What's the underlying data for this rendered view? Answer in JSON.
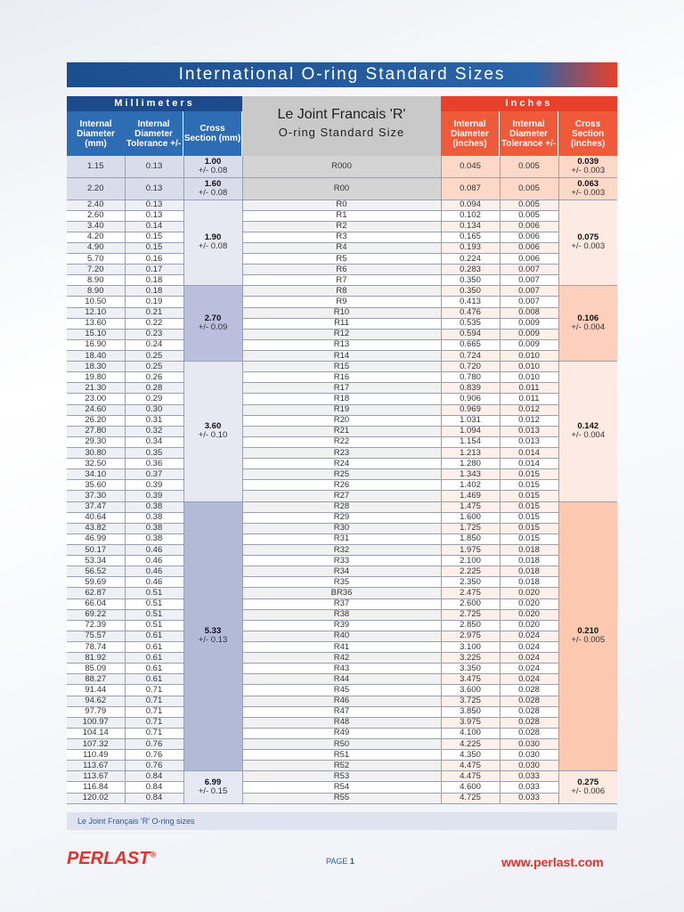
{
  "header": {
    "title": "International O-ring Standard Sizes",
    "millimeters": "Millimeters",
    "inches": "Inches",
    "middle_title": "Le Joint Francais 'R'",
    "middle_subtitle": "O-ring Standard Size",
    "columns": [
      "Internal Diameter (mm)",
      "Internal Diameter Tolerance +/-",
      "Cross Section (mm)",
      "Internal Diameter (inches)",
      "Internal Diameter Tolerance +/-",
      "Cross Section (inches)"
    ]
  },
  "groups": [
    {
      "cross_mm": "1.00",
      "cross_mm_tol": "+/- 0.08",
      "cross_in": "0.039",
      "cross_in_tol": "+/- 0.003",
      "rows": [
        [
          "1.15",
          "0.13",
          "R000",
          "0.045",
          "0.005"
        ]
      ]
    },
    {
      "cross_mm": "1.60",
      "cross_mm_tol": "+/- 0.08",
      "cross_in": "0.063",
      "cross_in_tol": "+/- 0.003",
      "rows": [
        [
          "2.20",
          "0.13",
          "R00",
          "0.087",
          "0.005"
        ]
      ]
    },
    {
      "cross_mm": "1.90",
      "cross_mm_tol": "+/- 0.08",
      "cross_in": "0.075",
      "cross_in_tol": "+/- 0.003",
      "rows": [
        [
          "2.40",
          "0.13",
          "R0",
          "0.094",
          "0.005"
        ],
        [
          "2.60",
          "0.13",
          "R1",
          "0.102",
          "0.005"
        ],
        [
          "3.40",
          "0.14",
          "R2",
          "0.134",
          "0.006"
        ],
        [
          "4.20",
          "0.15",
          "R3",
          "0.165",
          "0.006"
        ],
        [
          "4.90",
          "0.15",
          "R4",
          "0.193",
          "0.006"
        ],
        [
          "5.70",
          "0.16",
          "R5",
          "0.224",
          "0.006"
        ],
        [
          "7.20",
          "0.17",
          "R6",
          "0.283",
          "0.007"
        ],
        [
          "8.90",
          "0.18",
          "R7",
          "0.350",
          "0.007"
        ]
      ]
    },
    {
      "cross_mm": "2.70",
      "cross_mm_tol": "+/- 0.09",
      "cross_in": "0.106",
      "cross_in_tol": "+/- 0.004",
      "rows": [
        [
          "8.90",
          "0.18",
          "R8",
          "0.350",
          "0.007"
        ],
        [
          "10.50",
          "0.19",
          "R9",
          "0.413",
          "0.007"
        ],
        [
          "12.10",
          "0.21",
          "R10",
          "0.476",
          "0.008"
        ],
        [
          "13.60",
          "0.22",
          "R11",
          "0.535",
          "0.009"
        ],
        [
          "15.10",
          "0.23",
          "R12",
          "0.594",
          "0.009"
        ],
        [
          "16.90",
          "0.24",
          "R13",
          "0.665",
          "0.009"
        ],
        [
          "18.40",
          "0.25",
          "R14",
          "0.724",
          "0.010"
        ]
      ]
    },
    {
      "cross_mm": "3.60",
      "cross_mm_tol": "+/- 0.10",
      "cross_in": "0.142",
      "cross_in_tol": "+/- 0.004",
      "rows": [
        [
          "18.30",
          "0.25",
          "R15",
          "0.720",
          "0.010"
        ],
        [
          "19.80",
          "0.26",
          "R16",
          "0.780",
          "0.010"
        ],
        [
          "21.30",
          "0.28",
          "R17",
          "0.839",
          "0.011"
        ],
        [
          "23.00",
          "0.29",
          "R18",
          "0.906",
          "0.011"
        ],
        [
          "24.60",
          "0.30",
          "R19",
          "0.969",
          "0.012"
        ],
        [
          "26.20",
          "0.31",
          "R20",
          "1.031",
          "0.012"
        ],
        [
          "27.80",
          "0.32",
          "R21",
          "1.094",
          "0.013"
        ],
        [
          "29.30",
          "0.34",
          "R22",
          "1.154",
          "0.013"
        ],
        [
          "30.80",
          "0.35",
          "R23",
          "1.213",
          "0.014"
        ],
        [
          "32.50",
          "0.36",
          "R24",
          "1.280",
          "0.014"
        ],
        [
          "34.10",
          "0.37",
          "R25",
          "1.343",
          "0.015"
        ],
        [
          "35.60",
          "0.39",
          "R26",
          "1.402",
          "0.015"
        ],
        [
          "37.30",
          "0.39",
          "R27",
          "1.469",
          "0.015"
        ]
      ]
    },
    {
      "cross_mm": "5.33",
      "cross_mm_tol": "+/- 0.13",
      "cross_in": "0.210",
      "cross_in_tol": "+/- 0.005",
      "rows": [
        [
          "37.47",
          "0.38",
          "R28",
          "1.475",
          "0.015"
        ],
        [
          "40.64",
          "0.38",
          "R29",
          "1.600",
          "0.015"
        ],
        [
          "43.82",
          "0.38",
          "R30",
          "1.725",
          "0.015"
        ],
        [
          "46.99",
          "0.38",
          "R31",
          "1.850",
          "0.015"
        ],
        [
          "50.17",
          "0.46",
          "R32",
          "1.975",
          "0.018"
        ],
        [
          "53.34",
          "0.46",
          "R33",
          "2.100",
          "0.018"
        ],
        [
          "56.52",
          "0.46",
          "R34",
          "2.225",
          "0.018"
        ],
        [
          "59.69",
          "0.46",
          "R35",
          "2.350",
          "0.018"
        ],
        [
          "62.87",
          "0.51",
          "BR36",
          "2.475",
          "0.020"
        ],
        [
          "66.04",
          "0.51",
          "R37",
          "2.600",
          "0.020"
        ],
        [
          "69.22",
          "0.51",
          "R38",
          "2.725",
          "0.020"
        ],
        [
          "72.39",
          "0.51",
          "R39",
          "2.850",
          "0.020"
        ],
        [
          "75.57",
          "0.61",
          "R40",
          "2.975",
          "0.024"
        ],
        [
          "78.74",
          "0.61",
          "R41",
          "3.100",
          "0.024"
        ],
        [
          "81.92",
          "0.61",
          "R42",
          "3.225",
          "0.024"
        ],
        [
          "85.09",
          "0.61",
          "R43",
          "3.350",
          "0.024"
        ],
        [
          "88.27",
          "0.61",
          "R44",
          "3.475",
          "0.024"
        ],
        [
          "91.44",
          "0.71",
          "R45",
          "3.600",
          "0.028"
        ],
        [
          "94.62",
          "0.71",
          "R46",
          "3.725",
          "0.028"
        ],
        [
          "97.79",
          "0.71",
          "R47",
          "3.850",
          "0.028"
        ],
        [
          "100.97",
          "0.71",
          "R48",
          "3.975",
          "0.028"
        ],
        [
          "104.14",
          "0.71",
          "R49",
          "4.100",
          "0.028"
        ],
        [
          "107.32",
          "0.76",
          "R50",
          "4.225",
          "0.030"
        ],
        [
          "110.49",
          "0.76",
          "R51",
          "4.350",
          "0.030"
        ],
        [
          "113.67",
          "0.76",
          "R52",
          "4.475",
          "0.030"
        ]
      ]
    },
    {
      "cross_mm": "6.99",
      "cross_mm_tol": "+/- 0.15",
      "cross_in": "0.275",
      "cross_in_tol": "+/- 0.006",
      "rows": [
        [
          "113.67",
          "0.84",
          "R53",
          "4.475",
          "0.033"
        ],
        [
          "116.84",
          "0.84",
          "R54",
          "4.600",
          "0.033"
        ],
        [
          "120.02",
          "0.84",
          "R55",
          "4.725",
          "0.033"
        ]
      ]
    }
  ],
  "footer": {
    "caption": "Le Joint Français 'R' O-ring sizes",
    "logo": "PERLAST",
    "registered": "®",
    "page_label": "PAGE",
    "page_number": "1",
    "website": "www.perlast.com"
  }
}
